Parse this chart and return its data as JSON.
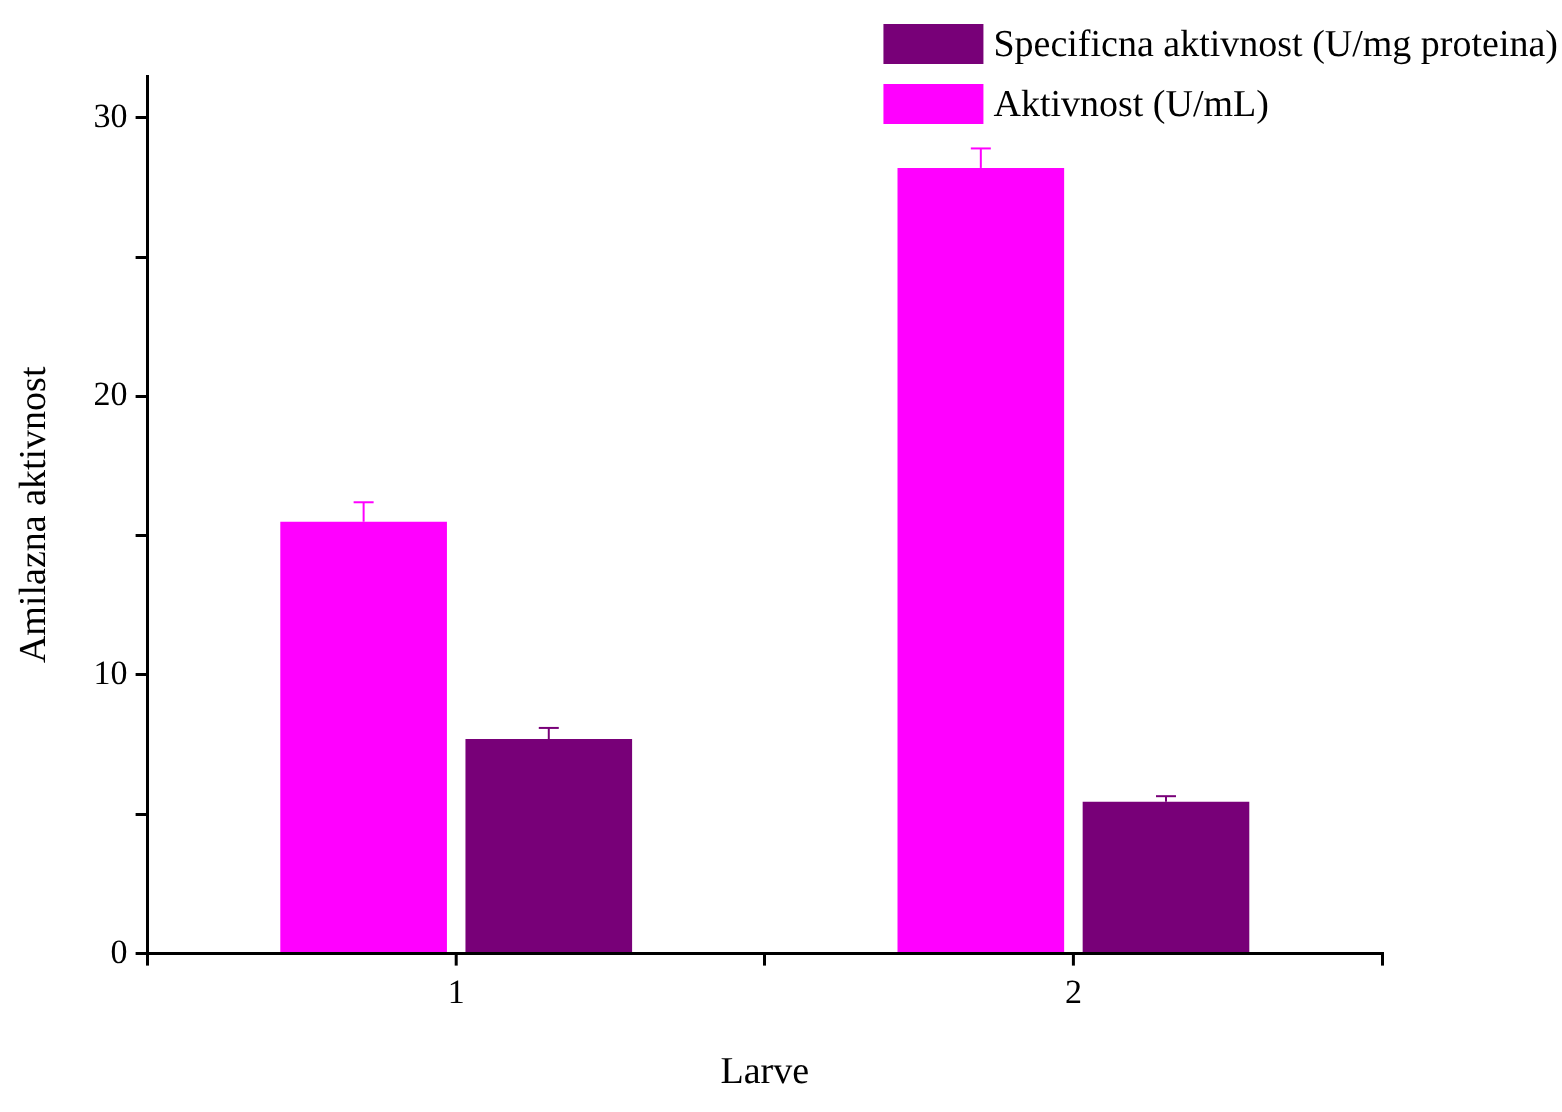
{
  "chart_data": {
    "type": "bar",
    "xlabel": "Larve",
    "ylabel": "Amilazna aktivnost",
    "categories": [
      "1",
      "2"
    ],
    "series": [
      {
        "name": "Aktivnost (U/mL)",
        "color": "#ff00ff",
        "values": [
          15.5,
          28.2
        ],
        "errors": [
          [
            15.5,
            16.2
          ],
          [
            28.2,
            28.9
          ]
        ]
      },
      {
        "name": "Specificna aktivnost (U/mg proteina)",
        "color": "#780078",
        "values": [
          7.7,
          5.45
        ],
        "errors": [
          [
            7.7,
            8.1
          ],
          [
            5.45,
            5.65
          ]
        ]
      }
    ],
    "ylim": [
      0,
      31.5
    ],
    "yticks": [
      0,
      {
        "value": 5,
        "label": null
      },
      10,
      {
        "value": 15,
        "label": null
      },
      20,
      {
        "value": 25,
        "label": null
      },
      30
    ],
    "grid": false,
    "legend": "top right"
  }
}
